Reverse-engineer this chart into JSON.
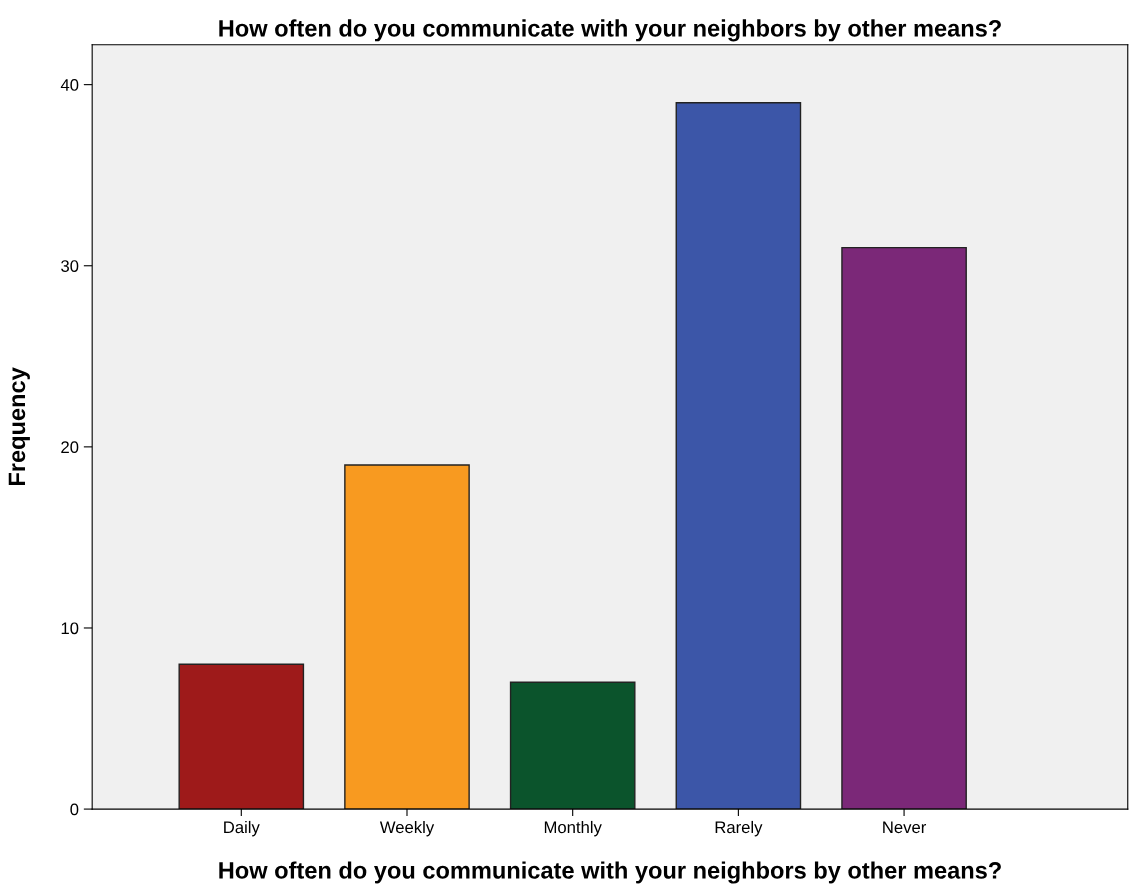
{
  "chart_data": {
    "type": "bar",
    "title": "How often do you communicate with your neighbors by other means?",
    "xlabel": "How often do you communicate with your neighbors by other means?",
    "ylabel": "Frequency",
    "categories": [
      "Daily",
      "Weekly",
      "Monthly",
      "Rarely",
      "Never"
    ],
    "values": [
      8,
      19,
      7,
      39,
      31
    ],
    "colors": [
      "#9e1a1a",
      "#f89a20",
      "#0b542c",
      "#3c56a8",
      "#7b2878"
    ],
    "ylim": [
      0,
      42.2
    ],
    "yticks": [
      0,
      10,
      20,
      30,
      40
    ],
    "grid": false,
    "legend": false
  }
}
